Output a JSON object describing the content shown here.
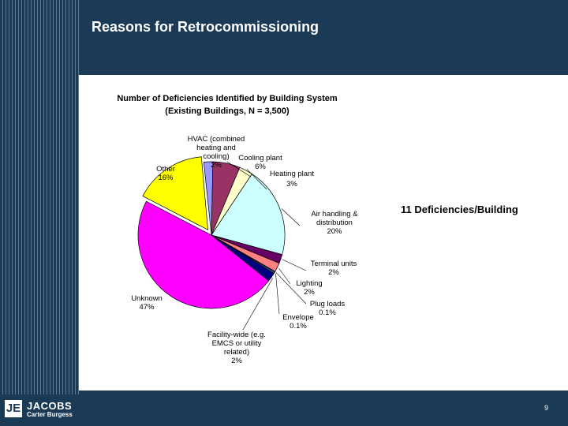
{
  "slide": {
    "title": "Reasons for Retrocommissioning",
    "note": "11 Deficiencies/Building",
    "page_number": "9"
  },
  "logo": {
    "mark": "JE",
    "name": "JACOBS",
    "sub": "Carter Burgess"
  },
  "colors": {
    "background": "#1b3a55",
    "panel": "#ffffff"
  },
  "chart_data": {
    "type": "pie",
    "title_lines": [
      "Number of Deficiencies Identified by Building System",
      "(Existing Buildings, N = 3,500)"
    ],
    "slices": [
      {
        "label_lines": [
          "HVAC (combined",
          "heating and",
          "cooling)",
          "2%"
        ],
        "value": 2,
        "color": "#9999ff"
      },
      {
        "label_lines": [
          "Cooling plant",
          "6%"
        ],
        "value": 6,
        "color": "#993366"
      },
      {
        "label_lines": [
          "Heating plant",
          "3%"
        ],
        "value": 3,
        "color": "#ffffcc"
      },
      {
        "label_lines": [
          "Air handling &",
          "distribution",
          "20%"
        ],
        "value": 20,
        "color": "#ccffff"
      },
      {
        "label_lines": [
          "Terminal units",
          "2%"
        ],
        "value": 2,
        "color": "#660066"
      },
      {
        "label_lines": [
          "Lighting",
          "2%"
        ],
        "value": 2,
        "color": "#ff8080"
      },
      {
        "label_lines": [
          "Plug loads",
          "0.1%"
        ],
        "value": 0.1,
        "color": "#0066cc"
      },
      {
        "label_lines": [
          "Envelope",
          "0.1%"
        ],
        "value": 0.1,
        "color": "#ccccff"
      },
      {
        "label_lines": [
          "Facility-wide (e.g.",
          "EMCS or utility",
          "related)",
          "2%"
        ],
        "value": 2,
        "color": "#000080"
      },
      {
        "label_lines": [
          "Unknown",
          "47%"
        ],
        "value": 47,
        "color": "#ff00ff"
      },
      {
        "label_lines": [
          "Other",
          "16%"
        ],
        "value": 16,
        "color": "#ffff00"
      }
    ]
  }
}
